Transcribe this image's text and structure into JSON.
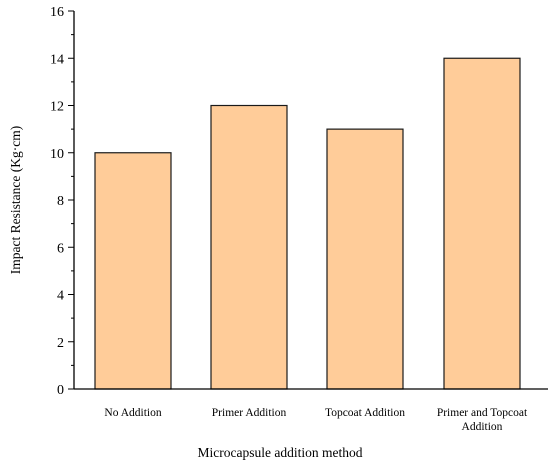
{
  "chart_data": {
    "type": "bar",
    "categories": [
      [
        "No Addition"
      ],
      [
        "Primer Addition"
      ],
      [
        "Topcoat Addition"
      ],
      [
        "Primer and Topcoat",
        "Addition"
      ]
    ],
    "values": [
      10,
      12,
      11,
      14
    ],
    "title": "",
    "xlabel": "Microcapsule addition method",
    "ylabel": "Impact Resistance (Kg·cm)",
    "ylim": [
      0,
      16
    ],
    "yticks": [
      0,
      2,
      4,
      6,
      8,
      10,
      12,
      14,
      16
    ],
    "grid": false,
    "colors": {
      "bar_fill": "#FFCC99",
      "bar_stroke": "#1a1a1a",
      "axis": "#000000"
    }
  }
}
